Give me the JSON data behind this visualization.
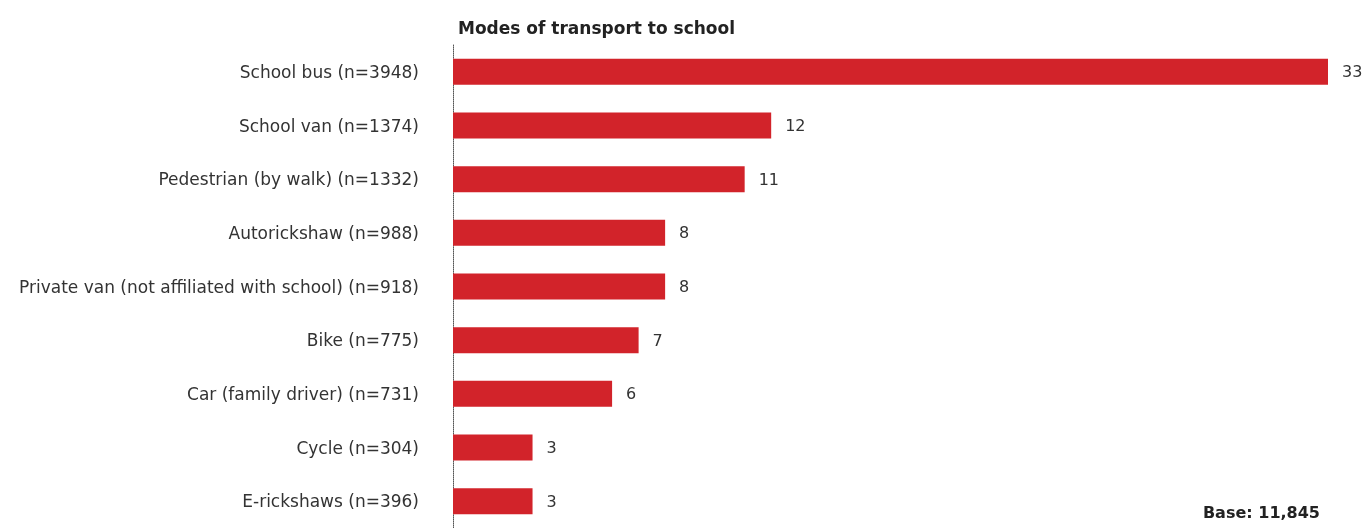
{
  "chart_data": {
    "type": "bar",
    "orientation": "horizontal",
    "title": "Modes of transport to school",
    "categories": [
      "School bus (n=3948)",
      "School van (n=1374)",
      "Pedestrian (by walk) (n=1332)",
      "Autorickshaw (n=988)",
      "Private van (not affiliated with school) (n=918)",
      "Bike (n=775)",
      "Car (family driver) (n=731)",
      "Cycle (n=304)",
      "E-rickshaws (n=396)"
    ],
    "values": [
      33,
      12,
      11,
      8,
      8,
      7,
      6,
      3,
      3
    ],
    "color": "#d2232a",
    "data_labels": true,
    "annotations": [
      "Base: 11,845"
    ]
  }
}
